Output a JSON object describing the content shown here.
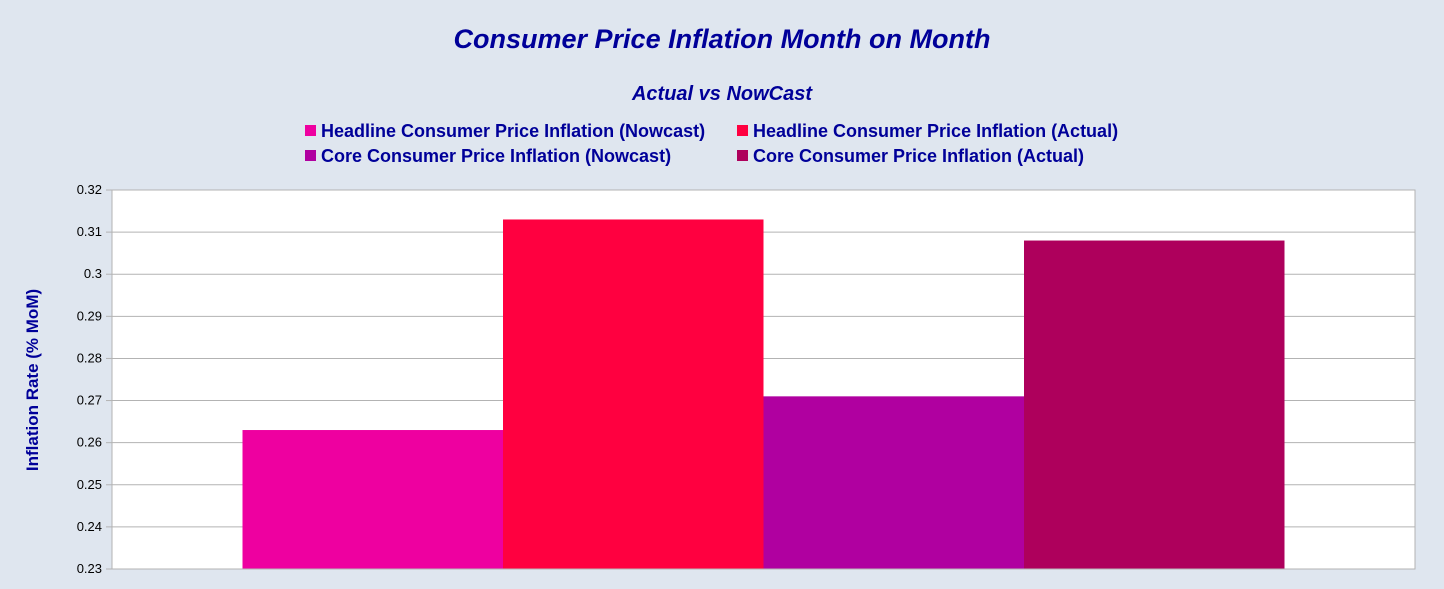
{
  "chart_data": {
    "type": "bar",
    "title": "Consumer Price Inflation Month on Month",
    "subtitle": "Actual vs NowCast",
    "xlabel": "",
    "ylabel": "Inflation Rate (% MoM)",
    "categories": [
      ""
    ],
    "ylim": [
      0.23,
      0.32
    ],
    "yticks": [
      "0.23",
      "0.24",
      "0.25",
      "0.26",
      "0.27",
      "0.28",
      "0.29",
      "0.3",
      "0.31",
      "0.32"
    ],
    "grid": true,
    "legend_position": "top",
    "series": [
      {
        "name": "Headline Consumer Price Inflation (Nowcast)",
        "values": [
          0.263
        ],
        "color": "#ee00a0"
      },
      {
        "name": "Headline Consumer Price Inflation (Actual)",
        "values": [
          0.313
        ],
        "color": "#ff0040"
      },
      {
        "name": "Core Consumer Price Inflation (Nowcast)",
        "values": [
          0.271
        ],
        "color": "#b000a0"
      },
      {
        "name": "Core Consumer Price Inflation (Actual)",
        "values": [
          0.308
        ],
        "color": "#ae005c"
      }
    ],
    "colors": {
      "background": "#dfe6ef",
      "plot_background": "#ffffff",
      "text": "#000099",
      "grid": "#b3b3b3"
    }
  }
}
